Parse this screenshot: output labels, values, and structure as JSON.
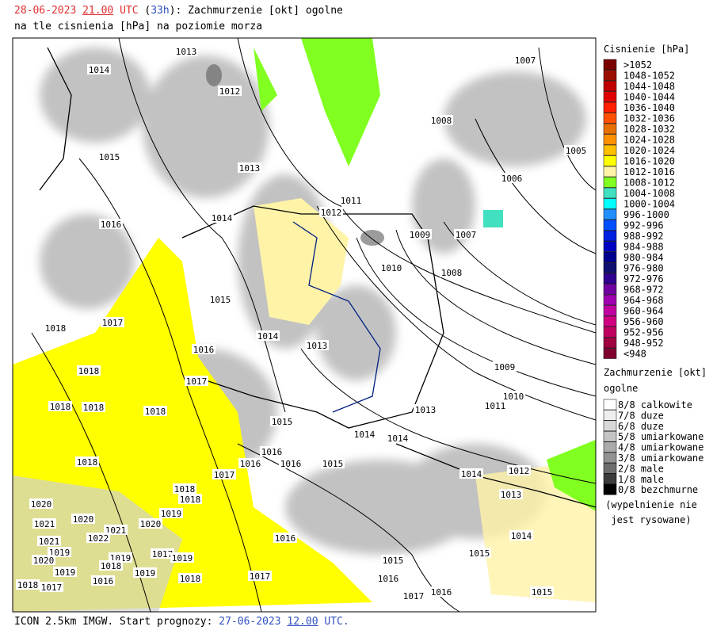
{
  "header": {
    "date": "28-06-2023",
    "hour": "21.00",
    "utc": "UTC",
    "open": "(",
    "lead": "33h",
    "title": "): Zachmurzenie [okt] ogolne",
    "subtitle": "na tle cisnienia [hPa] na poziomie morza"
  },
  "footer": {
    "text": "ICON 2.5km IMGW. Start prognozy: ",
    "date": "27-06-2023",
    "hour": "12.00",
    "utc": "UTC."
  },
  "pressure_legend": {
    "title": "Cisnienie [hPa]",
    "items": [
      {
        "label": ">1052",
        "color": "#7a0000"
      },
      {
        "label": "1048-1052",
        "color": "#9a1000"
      },
      {
        "label": "1044-1048",
        "color": "#c00000"
      },
      {
        "label": "1040-1044",
        "color": "#e00000"
      },
      {
        "label": "1036-1040",
        "color": "#ff2000"
      },
      {
        "label": "1032-1036",
        "color": "#ff5000"
      },
      {
        "label": "1028-1032",
        "color": "#e87000"
      },
      {
        "label": "1024-1028",
        "color": "#ff9000"
      },
      {
        "label": "1020-1024",
        "color": "#ffc000"
      },
      {
        "label": "1016-1020",
        "color": "#ffff00"
      },
      {
        "label": "1012-1016",
        "color": "#fff3a8"
      },
      {
        "label": "1008-1012",
        "color": "#80ff20"
      },
      {
        "label": "1004-1008",
        "color": "#40e0c0"
      },
      {
        "label": "1000-1004",
        "color": "#00ffff"
      },
      {
        "label": "996-1000",
        "color": "#2090ff"
      },
      {
        "label": "992-996",
        "color": "#0050ff"
      },
      {
        "label": "988-992",
        "color": "#0020e0"
      },
      {
        "label": "984-988",
        "color": "#0000c0"
      },
      {
        "label": "980-984",
        "color": "#000090"
      },
      {
        "label": "976-980",
        "color": "#101070"
      },
      {
        "label": "972-976",
        "color": "#300090"
      },
      {
        "label": "968-972",
        "color": "#7000a0"
      },
      {
        "label": "964-968",
        "color": "#a000b0"
      },
      {
        "label": "960-964",
        "color": "#c000a0"
      },
      {
        "label": "956-960",
        "color": "#d00080"
      },
      {
        "label": "952-956",
        "color": "#c00060"
      },
      {
        "label": "948-952",
        "color": "#a00040"
      },
      {
        "label": "<948",
        "color": "#800030"
      }
    ]
  },
  "cloud_legend": {
    "title": "Zachmurzenie [okt]",
    "subtitle": "ogolne",
    "items": [
      {
        "label": "8/8 calkowite",
        "color": "#ffffff"
      },
      {
        "label": "7/8 duze",
        "color": "#eeeeee"
      },
      {
        "label": "6/8 duze",
        "color": "#d8d8d8"
      },
      {
        "label": "5/8 umiarkowane",
        "color": "#c4c4c4"
      },
      {
        "label": "4/8 umiarkowane",
        "color": "#ababab"
      },
      {
        "label": "3/8 umiarkowane",
        "color": "#929292"
      },
      {
        "label": "2/8 male",
        "color": "#6e6e6e"
      },
      {
        "label": "1/8 male",
        "color": "#3c3c3c"
      },
      {
        "label": "0/8 bezchmurne",
        "color": "#000000"
      }
    ],
    "note": [
      "(wypelnienie nie",
      "jest rysowane)"
    ]
  },
  "map": {
    "isobar_labels": [
      "1013",
      "1014",
      "1012",
      "1007",
      "1008",
      "1005",
      "1015",
      "1013",
      "1006",
      "1011",
      "1012",
      "1014",
      "1016",
      "1009",
      "1007",
      "1010",
      "1008",
      "1015",
      "1017",
      "1018",
      "1014",
      "1013",
      "1016",
      "1009",
      "1018",
      "1017",
      "1010",
      "1011",
      "1018",
      "1018",
      "1018",
      "1013",
      "1015",
      "1014",
      "1014",
      "1016",
      "1016",
      "1016",
      "1015",
      "1018",
      "1017",
      "1014",
      "1012",
      "1018",
      "1018",
      "1013",
      "1020",
      "1020",
      "1021",
      "1019",
      "1020",
      "1021",
      "1022",
      "1021",
      "1016",
      "1014",
      "1019",
      "1017",
      "1019",
      "1019",
      "1020",
      "1015",
      "1015",
      "1018",
      "1019",
      "1019",
      "1017",
      "1018",
      "1016",
      "1016",
      "1018",
      "1017",
      "1016",
      "1017",
      "1015"
    ]
  }
}
